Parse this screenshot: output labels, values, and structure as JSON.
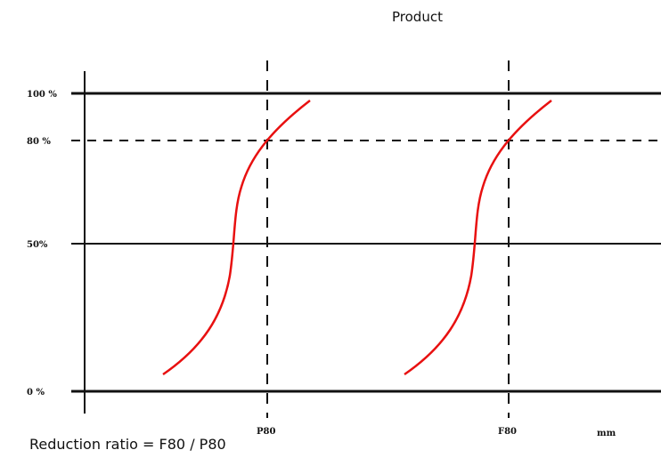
{
  "top_label": "Product",
  "caption": "Reduction ratio = F80 / P80",
  "y_levels": [
    {
      "label": "100 %",
      "value": 100,
      "style": "solid-thick"
    },
    {
      "label": "80 %",
      "value": 80,
      "style": "dashed"
    },
    {
      "label": "50%",
      "value": 50,
      "style": "solid"
    },
    {
      "label": "0 %",
      "value": 0,
      "style": "solid-thick"
    }
  ],
  "x_markers": [
    {
      "label": "P80"
    },
    {
      "label": "F80"
    }
  ],
  "x_unit": "mm",
  "curve_color": "#e81010"
}
